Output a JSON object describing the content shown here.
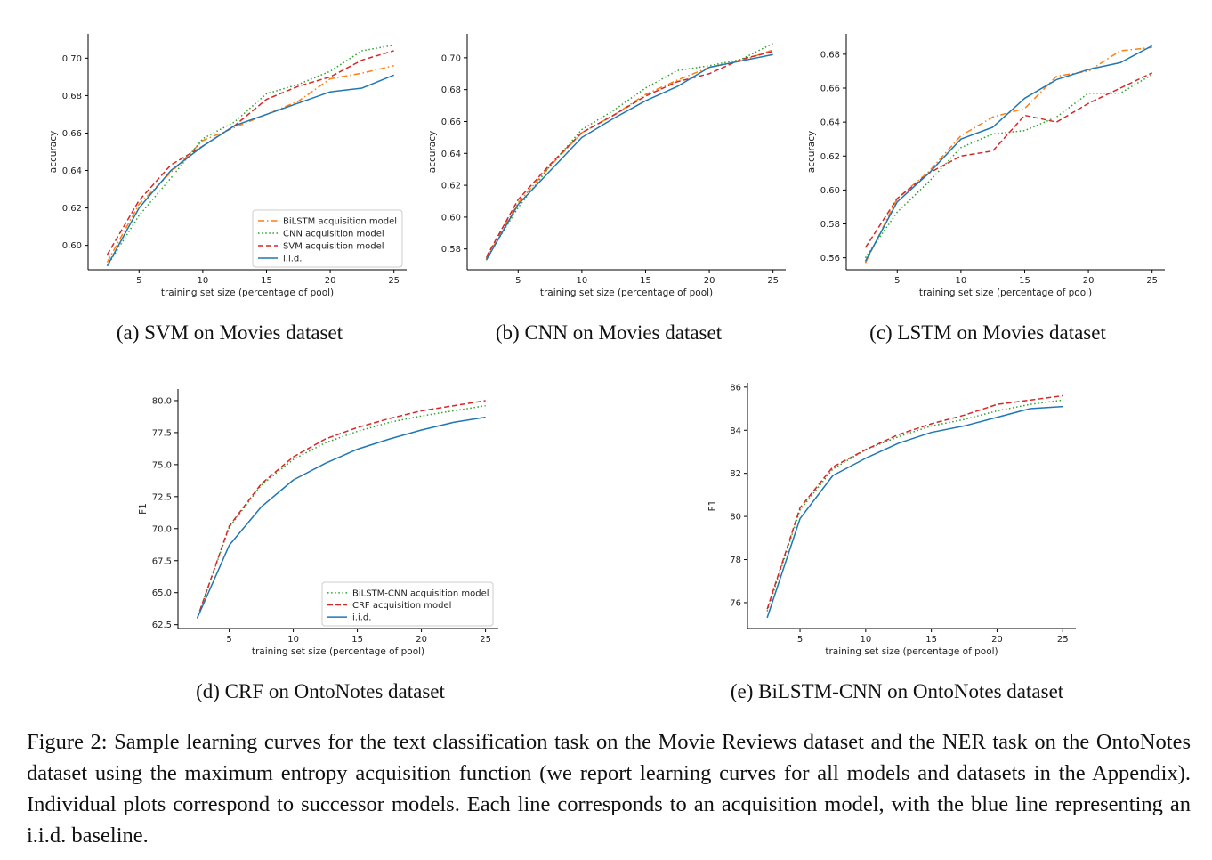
{
  "caption": "Figure 2: Sample learning curves for the text classification task on the Movie Reviews dataset and the NER task on the OntoNotes dataset using the maximum entropy acquisition function (we report learning curves for all models and datasets in the Appendix). Individual plots correspond to successor models. Each line corresponds to an acquisition model, with the blue line representing an i.i.d. baseline.",
  "colors": {
    "orange": "#ff7f0e",
    "green": "#2ca02c",
    "red": "#d62728",
    "blue": "#1f77b4"
  },
  "chart_data": [
    {
      "id": "a",
      "type": "line",
      "subcaption": "(a) SVM on Movies dataset",
      "xlabel": "training set size (percentage of pool)",
      "ylabel": "accuracy",
      "xlim": [
        1,
        26
      ],
      "ylim": [
        0.587,
        0.713
      ],
      "xticks": [
        5,
        10,
        15,
        20,
        25
      ],
      "yticks": [
        0.6,
        0.62,
        0.64,
        0.66,
        0.68,
        0.7
      ],
      "ytick_decimals": 2,
      "grid": false,
      "legend": "lower-right",
      "x": [
        2.5,
        5,
        7.5,
        10,
        12.5,
        15,
        17.5,
        20,
        22.5,
        25
      ],
      "series": [
        {
          "name": "BiLSTM acquisition model",
          "style": "dashdot",
          "color": "#ff7f0e",
          "values": [
            0.591,
            0.622,
            0.639,
            0.656,
            0.663,
            0.67,
            0.677,
            0.689,
            0.692,
            0.696
          ]
        },
        {
          "name": "CNN acquisition model",
          "style": "dotted",
          "color": "#2ca02c",
          "values": [
            0.589,
            0.616,
            0.636,
            0.657,
            0.666,
            0.681,
            0.686,
            0.693,
            0.704,
            0.707
          ]
        },
        {
          "name": "SVM acquisition model",
          "style": "dashed",
          "color": "#d62728",
          "values": [
            0.595,
            0.624,
            0.643,
            0.653,
            0.664,
            0.678,
            0.685,
            0.69,
            0.699,
            0.704
          ]
        },
        {
          "name": "i.i.d.",
          "style": "solid",
          "color": "#1f77b4",
          "values": [
            0.589,
            0.62,
            0.64,
            0.653,
            0.664,
            0.67,
            0.676,
            0.682,
            0.684,
            0.691
          ]
        }
      ]
    },
    {
      "id": "b",
      "type": "line",
      "subcaption": "(b) CNN on Movies dataset",
      "xlabel": "training set size (percentage of pool)",
      "ylabel": "accuracy",
      "xlim": [
        1,
        26
      ],
      "ylim": [
        0.567,
        0.715
      ],
      "xticks": [
        5,
        10,
        15,
        20,
        25
      ],
      "yticks": [
        0.58,
        0.6,
        0.62,
        0.64,
        0.66,
        0.68,
        0.7
      ],
      "ytick_decimals": 2,
      "grid": false,
      "legend": "none",
      "x": [
        2.5,
        5,
        7.5,
        10,
        12.5,
        15,
        17.5,
        20,
        22.5,
        25
      ],
      "series": [
        {
          "name": "",
          "style": "dashdot",
          "color": "#ff7f0e",
          "values": [
            0.574,
            0.609,
            0.632,
            0.653,
            0.664,
            0.677,
            0.686,
            0.694,
            0.698,
            0.705
          ]
        },
        {
          "name": "",
          "style": "dotted",
          "color": "#2ca02c",
          "values": [
            0.574,
            0.606,
            0.632,
            0.655,
            0.667,
            0.681,
            0.692,
            0.695,
            0.699,
            0.709
          ]
        },
        {
          "name": "",
          "style": "dashed",
          "color": "#d62728",
          "values": [
            0.575,
            0.611,
            0.633,
            0.653,
            0.664,
            0.676,
            0.685,
            0.69,
            0.699,
            0.704
          ]
        },
        {
          "name": "",
          "style": "solid",
          "color": "#1f77b4",
          "values": [
            0.573,
            0.608,
            0.629,
            0.65,
            0.662,
            0.673,
            0.682,
            0.694,
            0.698,
            0.702
          ]
        }
      ]
    },
    {
      "id": "c",
      "type": "line",
      "subcaption": "(c) LSTM on Movies dataset",
      "xlabel": "training set size (percentage of pool)",
      "ylabel": "accuracy",
      "xlim": [
        1,
        26
      ],
      "ylim": [
        0.553,
        0.692
      ],
      "xticks": [
        5,
        10,
        15,
        20,
        25
      ],
      "yticks": [
        0.56,
        0.58,
        0.6,
        0.62,
        0.64,
        0.66,
        0.68
      ],
      "ytick_decimals": 2,
      "grid": false,
      "legend": "none",
      "x": [
        2.5,
        5,
        7.5,
        10,
        12.5,
        15,
        17.5,
        20,
        22.5,
        25
      ],
      "series": [
        {
          "name": "",
          "style": "dashdot",
          "color": "#ff7f0e",
          "values": [
            0.557,
            0.595,
            0.611,
            0.632,
            0.643,
            0.648,
            0.667,
            0.67,
            0.682,
            0.684
          ]
        },
        {
          "name": "",
          "style": "dotted",
          "color": "#2ca02c",
          "values": [
            0.56,
            0.587,
            0.605,
            0.625,
            0.633,
            0.635,
            0.643,
            0.657,
            0.657,
            0.668
          ]
        },
        {
          "name": "",
          "style": "dashed",
          "color": "#d62728",
          "values": [
            0.566,
            0.595,
            0.61,
            0.62,
            0.623,
            0.644,
            0.64,
            0.651,
            0.66,
            0.669
          ]
        },
        {
          "name": "",
          "style": "solid",
          "color": "#1f77b4",
          "values": [
            0.558,
            0.593,
            0.61,
            0.63,
            0.637,
            0.654,
            0.665,
            0.671,
            0.675,
            0.685
          ]
        }
      ]
    },
    {
      "id": "d",
      "type": "line",
      "subcaption": "(d) CRF on OntoNotes dataset",
      "xlabel": "training set size (percentage of pool)",
      "ylabel": "F1",
      "xlim": [
        1,
        26
      ],
      "ylim": [
        62.2,
        80.9
      ],
      "xticks": [
        5,
        10,
        15,
        20,
        25
      ],
      "yticks": [
        62.5,
        65.0,
        67.5,
        70.0,
        72.5,
        75.0,
        77.5,
        80.0
      ],
      "ytick_decimals": 1,
      "grid": false,
      "legend": "lower-right",
      "x": [
        2.5,
        5,
        7.5,
        10,
        12.5,
        15,
        17.5,
        20,
        22.5,
        25
      ],
      "series": [
        {
          "name": "BiLSTM-CNN acquisition model",
          "style": "dotted",
          "color": "#2ca02c",
          "values": [
            63.0,
            70.1,
            73.4,
            75.4,
            76.7,
            77.6,
            78.3,
            78.8,
            79.2,
            79.6
          ]
        },
        {
          "name": "CRF acquisition model",
          "style": "dashed",
          "color": "#d62728",
          "values": [
            63.0,
            70.2,
            73.5,
            75.6,
            77.0,
            77.9,
            78.6,
            79.2,
            79.6,
            80.0
          ]
        },
        {
          "name": "i.i.d.",
          "style": "solid",
          "color": "#1f77b4",
          "values": [
            63.0,
            68.7,
            71.7,
            73.8,
            75.1,
            76.2,
            77.0,
            77.7,
            78.3,
            78.7
          ]
        }
      ]
    },
    {
      "id": "e",
      "type": "line",
      "subcaption": "(e) BiLSTM-CNN on OntoNotes dataset",
      "xlabel": "training set size (percentage of pool)",
      "ylabel": "F1",
      "xlim": [
        1,
        26
      ],
      "ylim": [
        74.8,
        86.2
      ],
      "xticks": [
        5,
        10,
        15,
        20,
        25
      ],
      "yticks": [
        76,
        78,
        80,
        82,
        84,
        86
      ],
      "ytick_decimals": 0,
      "grid": false,
      "legend": "none",
      "x": [
        2.5,
        5,
        7.5,
        10,
        12.5,
        15,
        17.5,
        20,
        22.5,
        25
      ],
      "series": [
        {
          "name": "",
          "style": "dotted",
          "color": "#2ca02c",
          "values": [
            75.6,
            80.3,
            82.2,
            83.1,
            83.7,
            84.2,
            84.5,
            84.9,
            85.2,
            85.4
          ]
        },
        {
          "name": "",
          "style": "dashed",
          "color": "#d62728",
          "values": [
            75.7,
            80.4,
            82.3,
            83.1,
            83.8,
            84.3,
            84.7,
            85.2,
            85.4,
            85.6
          ]
        },
        {
          "name": "",
          "style": "solid",
          "color": "#1f77b4",
          "values": [
            75.3,
            79.9,
            81.9,
            82.7,
            83.4,
            83.9,
            84.2,
            84.6,
            85.0,
            85.1
          ]
        }
      ]
    }
  ]
}
